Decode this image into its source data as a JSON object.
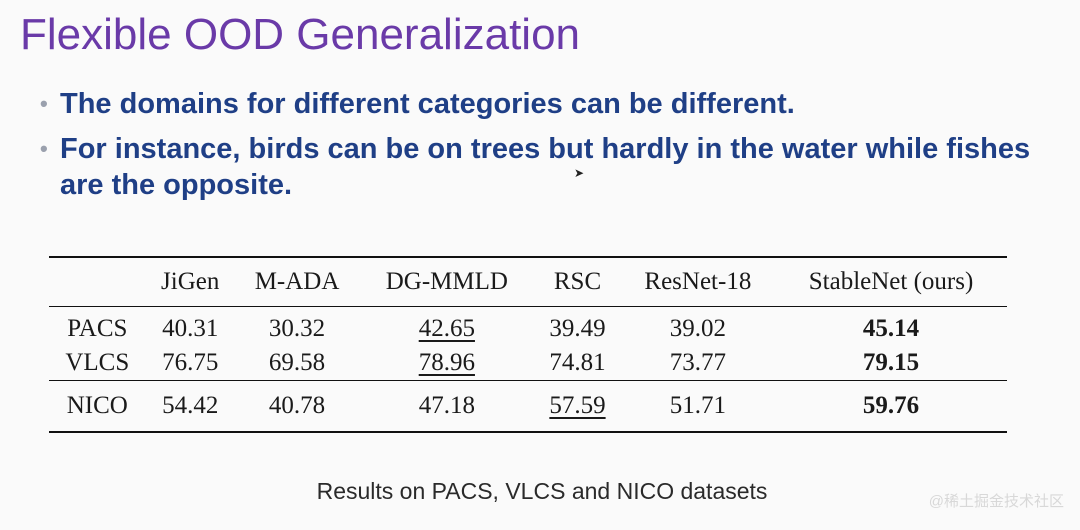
{
  "slide": {
    "title": "Flexible OOD Generalization",
    "bullets": [
      {
        "text": "The domains for different categories can be different."
      },
      {
        "text": "For instance, birds can be on trees but hardly in the water while fishes are the opposite."
      }
    ]
  },
  "table": {
    "headers": [
      "",
      "JiGen",
      "M-ADA",
      "DG-MMLD",
      "RSC",
      "ResNet-18",
      "StableNet (ours)"
    ],
    "rows": [
      {
        "name": "PACS",
        "cells": [
          {
            "value": "40.31",
            "style": "normal"
          },
          {
            "value": "30.32",
            "style": "normal"
          },
          {
            "value": "42.65",
            "style": "underline"
          },
          {
            "value": "39.49",
            "style": "normal"
          },
          {
            "value": "39.02",
            "style": "normal"
          },
          {
            "value": "45.14",
            "style": "bold"
          }
        ]
      },
      {
        "name": "VLCS",
        "cells": [
          {
            "value": "76.75",
            "style": "normal"
          },
          {
            "value": "69.58",
            "style": "normal"
          },
          {
            "value": "78.96",
            "style": "underline"
          },
          {
            "value": "74.81",
            "style": "normal"
          },
          {
            "value": "73.77",
            "style": "normal"
          },
          {
            "value": "79.15",
            "style": "bold"
          }
        ]
      },
      {
        "name": "NICO",
        "cells": [
          {
            "value": "54.42",
            "style": "normal"
          },
          {
            "value": "40.78",
            "style": "normal"
          },
          {
            "value": "47.18",
            "style": "normal"
          },
          {
            "value": "57.59",
            "style": "underline"
          },
          {
            "value": "51.71",
            "style": "normal"
          },
          {
            "value": "59.76",
            "style": "bold"
          }
        ]
      }
    ]
  },
  "caption": "Results on PACS, VLCS and NICO datasets",
  "watermark": "@稀土掘金技术社区",
  "colors": {
    "title": "#6a3aa8",
    "bullet_text": "#1f3f86",
    "bullet_dot": "#9aa0ad"
  },
  "icons": {
    "bullet": "bullet-dot-icon",
    "cursor": "mouse-cursor-icon"
  }
}
